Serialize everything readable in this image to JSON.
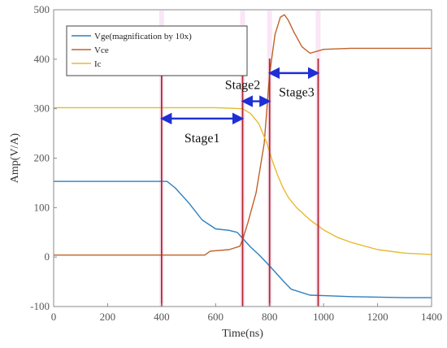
{
  "chart_data": {
    "type": "line",
    "xlabel": "Time(ns)",
    "ylabel": "Amp(V/A)",
    "xlim": [
      0,
      1400
    ],
    "ylim": [
      -100,
      500
    ],
    "xticks": [
      0,
      200,
      400,
      600,
      800,
      1000,
      1200,
      1400
    ],
    "yticks": [
      -100,
      0,
      100,
      200,
      300,
      400,
      500
    ],
    "grid": false,
    "legend_position": "top-left",
    "series": [
      {
        "name": "Vge(magnification by 10x)",
        "color": "#2f7fbd",
        "x": [
          0,
          380,
          420,
          450,
          500,
          550,
          600,
          650,
          680,
          700,
          730,
          760,
          790,
          820,
          850,
          880,
          950,
          1000,
          1100,
          1200,
          1300,
          1400
        ],
        "y": [
          153,
          153,
          153,
          140,
          110,
          75,
          57,
          54,
          50,
          38,
          20,
          5,
          -12,
          -30,
          -48,
          -65,
          -77,
          -78,
          -80,
          -81,
          -82,
          -82
        ]
      },
      {
        "name": "Vce",
        "color": "#c0622a",
        "x": [
          0,
          560,
          580,
          650,
          690,
          700,
          720,
          750,
          780,
          800,
          820,
          840,
          855,
          870,
          890,
          920,
          950,
          1000,
          1100,
          1200,
          1400
        ],
        "y": [
          4,
          4,
          12,
          15,
          22,
          35,
          70,
          130,
          230,
          370,
          450,
          485,
          490,
          478,
          455,
          425,
          412,
          420,
          422,
          422,
          422
        ]
      },
      {
        "name": "Ic",
        "color": "#e8b930",
        "x": [
          0,
          600,
          700,
          730,
          760,
          790,
          810,
          830,
          850,
          870,
          900,
          950,
          1000,
          1050,
          1100,
          1200,
          1300,
          1400
        ],
        "y": [
          302,
          302,
          300,
          290,
          270,
          230,
          195,
          165,
          140,
          120,
          100,
          75,
          55,
          40,
          30,
          15,
          8,
          5
        ]
      }
    ],
    "vlines": [
      {
        "x": 400,
        "color": "#b02a2a",
        "style": "solid"
      },
      {
        "x": 700,
        "color": "#b02a2a",
        "style": "solid"
      },
      {
        "x": 800,
        "color": "#b02a2a",
        "style": "solid"
      },
      {
        "x": 980,
        "color": "#b02a2a",
        "style": "solid"
      }
    ],
    "annotations": [
      {
        "label": "Stage1",
        "x_start": 400,
        "x_end": 700,
        "arrow_y": 280,
        "text_x": 550,
        "text_y": 232
      },
      {
        "label": "Stage2",
        "x_start": 700,
        "x_end": 800,
        "arrow_y": 315,
        "text_x": 700,
        "text_y": 340
      },
      {
        "label": "Stage3",
        "x_start": 800,
        "x_end": 980,
        "arrow_y": 372,
        "text_x": 900,
        "text_y": 325
      }
    ]
  },
  "colors": {
    "arrow": "#1f2fd6",
    "axis": "#8a8a8a",
    "marker": "#b02a2a",
    "highlight": "#f0b6e6"
  }
}
